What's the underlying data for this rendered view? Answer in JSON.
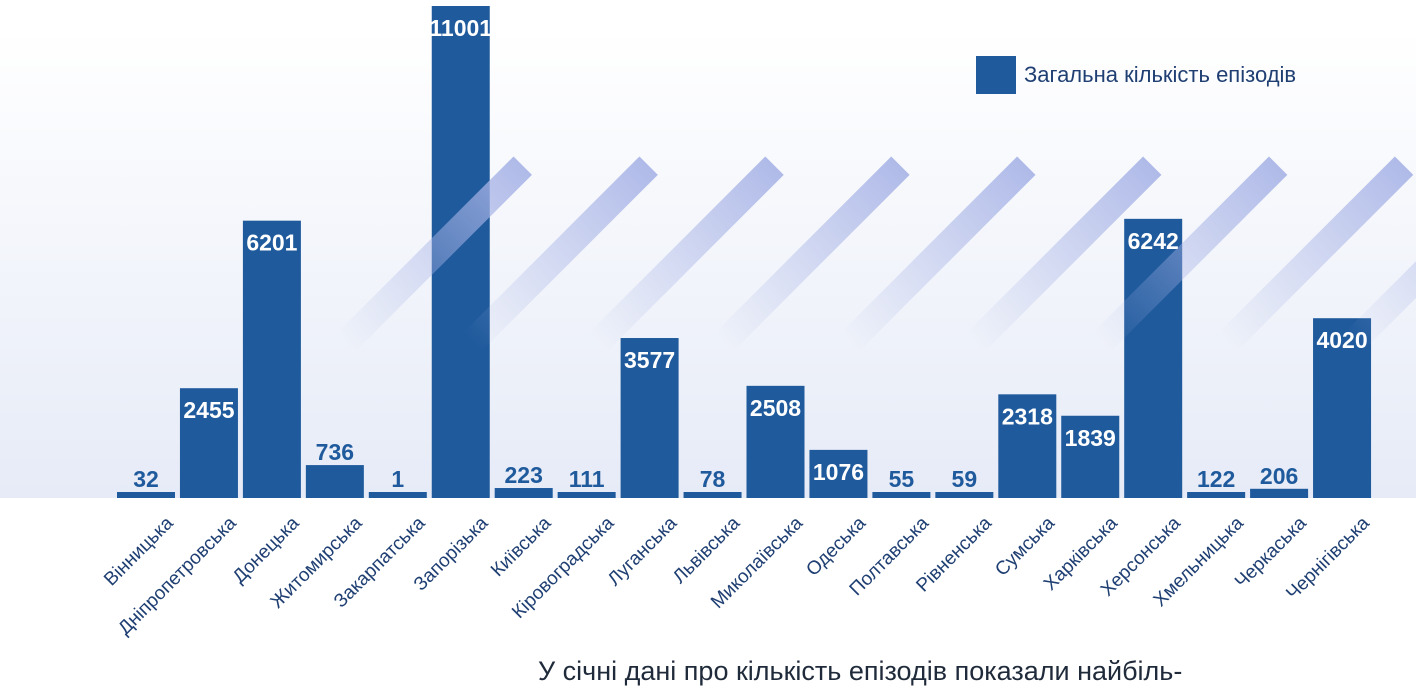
{
  "chart_data": {
    "type": "bar",
    "categories": [
      "Вінницька",
      "Дніпропетровська",
      "Донецька",
      "Житомирська",
      "Закарпатська",
      "Запорізька",
      "Київська",
      "Кіровоградська",
      "Луганська",
      "Львівська",
      "Миколаївська",
      "Одеська",
      "Полтавська",
      "Рівненська",
      "Сумська",
      "Харківська",
      "Херсонська",
      "Хмельницька",
      "Черкаська",
      "Чернігівська"
    ],
    "series": [
      {
        "name": "Загальна кількість епізодів",
        "values": [
          32,
          2455,
          6201,
          736,
          1,
          11001,
          223,
          111,
          3577,
          78,
          2508,
          1076,
          55,
          59,
          2318,
          1839,
          6242,
          122,
          206,
          4020
        ]
      }
    ],
    "value_labels": [
      "32",
      "2455",
      "6201",
      "736",
      "1",
      "11001",
      "223",
      "111",
      "3577",
      "78",
      "2508",
      "1076",
      "55",
      "59",
      "2318",
      "1839",
      "6242",
      "122",
      "206",
      "4020"
    ],
    "ylim": [
      0,
      11001
    ],
    "grid": false,
    "legend_position": "top-right",
    "colors": {
      "bar": "#1f5a9c",
      "text": "#1f3f73",
      "background_tint": "#e8ecf8"
    }
  },
  "legend": {
    "label": "Загальна кількість епізодів"
  },
  "caption": "У січні дані про кількість епізодів показали найбіль-"
}
